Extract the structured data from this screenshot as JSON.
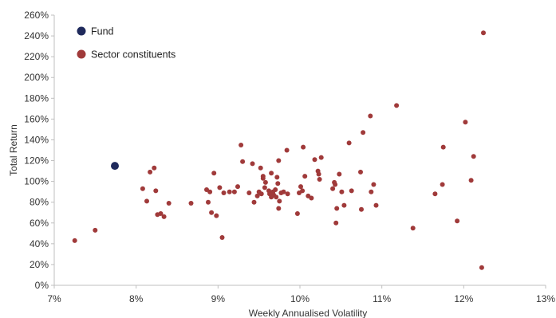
{
  "chart_data": {
    "type": "scatter",
    "xlabel": "Weekly Annualised Volatility",
    "ylabel": "Total Return",
    "xlim": [
      7,
      13
    ],
    "ylim": [
      0,
      260
    ],
    "x_ticks": [
      7,
      8,
      9,
      10,
      11,
      12,
      13
    ],
    "y_ticks": [
      0,
      20,
      40,
      60,
      80,
      100,
      120,
      140,
      160,
      180,
      200,
      220,
      240,
      260
    ],
    "x_tick_labels": [
      "7%",
      "8%",
      "9%",
      "10%",
      "11%",
      "12%",
      "13%"
    ],
    "y_tick_labels": [
      "0%",
      "20%",
      "40%",
      "60%",
      "80%",
      "100%",
      "120%",
      "140%",
      "160%",
      "180%",
      "200%",
      "220%",
      "240%",
      "260%"
    ],
    "grid": false,
    "legend_position": "top-left",
    "series": [
      {
        "name": "Fund",
        "color": "#1f2a5c",
        "points": [
          [
            7.74,
            115
          ]
        ]
      },
      {
        "name": "Sector constituents",
        "color": "#a03a3a",
        "points": [
          [
            7.25,
            43
          ],
          [
            7.5,
            53
          ],
          [
            8.08,
            93
          ],
          [
            8.13,
            81
          ],
          [
            8.17,
            109
          ],
          [
            8.22,
            113
          ],
          [
            8.24,
            91
          ],
          [
            8.26,
            68
          ],
          [
            8.3,
            69
          ],
          [
            8.34,
            66
          ],
          [
            8.4,
            79
          ],
          [
            8.67,
            79
          ],
          [
            8.86,
            92
          ],
          [
            8.88,
            80
          ],
          [
            8.9,
            90
          ],
          [
            8.92,
            70
          ],
          [
            8.95,
            108
          ],
          [
            8.98,
            67
          ],
          [
            9.02,
            94
          ],
          [
            9.05,
            46
          ],
          [
            9.07,
            89
          ],
          [
            9.14,
            90
          ],
          [
            9.2,
            90
          ],
          [
            9.24,
            95
          ],
          [
            9.28,
            135
          ],
          [
            9.3,
            119
          ],
          [
            9.38,
            89
          ],
          [
            9.42,
            117
          ],
          [
            9.44,
            80
          ],
          [
            9.48,
            86
          ],
          [
            9.52,
            113
          ],
          [
            9.5,
            90
          ],
          [
            9.53,
            88
          ],
          [
            9.55,
            103
          ],
          [
            9.57,
            94
          ],
          [
            9.55,
            105
          ],
          [
            9.58,
            99
          ],
          [
            9.62,
            91
          ],
          [
            9.63,
            88
          ],
          [
            9.65,
            108
          ],
          [
            9.65,
            85
          ],
          [
            9.67,
            90
          ],
          [
            9.68,
            87
          ],
          [
            9.7,
            92
          ],
          [
            9.72,
            104
          ],
          [
            9.71,
            85
          ],
          [
            9.73,
            98
          ],
          [
            9.74,
            120
          ],
          [
            9.75,
            81
          ],
          [
            9.74,
            74
          ],
          [
            9.77,
            89
          ],
          [
            9.8,
            90
          ],
          [
            9.84,
            130
          ],
          [
            9.85,
            88
          ],
          [
            9.97,
            69
          ],
          [
            9.99,
            89
          ],
          [
            10.01,
            95
          ],
          [
            10.03,
            91
          ],
          [
            10.04,
            133
          ],
          [
            10.06,
            105
          ],
          [
            10.1,
            86
          ],
          [
            10.14,
            84
          ],
          [
            10.18,
            121
          ],
          [
            10.22,
            110
          ],
          [
            10.24,
            102
          ],
          [
            10.23,
            107
          ],
          [
            10.26,
            123
          ],
          [
            10.4,
            93
          ],
          [
            10.42,
            99
          ],
          [
            10.43,
            97
          ],
          [
            10.44,
            60
          ],
          [
            10.45,
            74
          ],
          [
            10.48,
            107
          ],
          [
            10.51,
            90
          ],
          [
            10.54,
            77
          ],
          [
            10.6,
            137
          ],
          [
            10.63,
            91
          ],
          [
            10.74,
            109
          ],
          [
            10.75,
            73
          ],
          [
            10.77,
            147
          ],
          [
            10.86,
            163
          ],
          [
            10.87,
            90
          ],
          [
            10.9,
            97
          ],
          [
            10.93,
            77
          ],
          [
            11.18,
            173
          ],
          [
            11.38,
            55
          ],
          [
            11.65,
            88
          ],
          [
            11.74,
            97
          ],
          [
            11.75,
            133
          ],
          [
            11.92,
            62
          ],
          [
            12.02,
            157
          ],
          [
            12.09,
            101
          ],
          [
            12.12,
            124
          ],
          [
            12.22,
            17
          ],
          [
            12.24,
            243
          ]
        ]
      }
    ]
  }
}
